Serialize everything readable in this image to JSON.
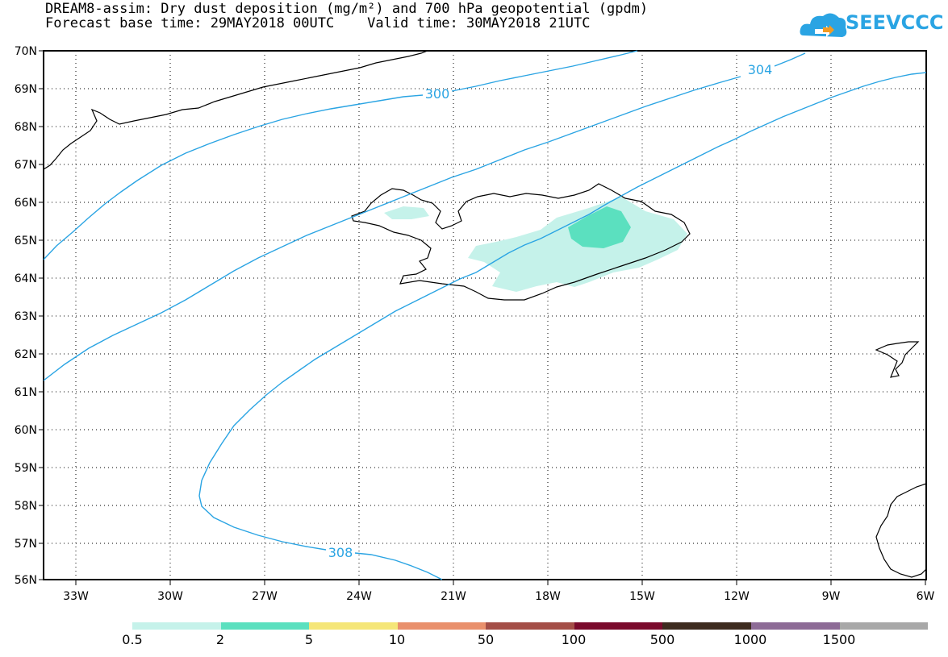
{
  "title_line1": "DREAM8-assim: Dry dust deposition (mg/m²) and 700 hPa geopotential (gpdm)",
  "title_line2": "Forecast base time: 29MAY2018 00UTC    Valid time: 30MAY2018 21UTC",
  "logo_text": "SEEVCCC",
  "lat_labels": [
    "70N",
    "69N",
    "68N",
    "67N",
    "66N",
    "65N",
    "64N",
    "63N",
    "62N",
    "61N",
    "60N",
    "59N",
    "58N",
    "57N",
    "56N"
  ],
  "lon_labels": [
    "33W",
    "30W",
    "27W",
    "24W",
    "21W",
    "18W",
    "15W",
    "12W",
    "9W",
    "6W"
  ],
  "contour_labels": [
    "300",
    "304",
    "308"
  ],
  "colorbar": {
    "colors": [
      "#c5f2ea",
      "#5be0bf",
      "#f5e678",
      "#e9906c",
      "#a44e47",
      "#7a0a2c",
      "#3d2b1f",
      "#8d6b96",
      "#a8a8a8"
    ],
    "labels": [
      "0.5",
      "2",
      "5",
      "10",
      "50",
      "100",
      "500",
      "1000",
      "1500"
    ]
  },
  "colors": {
    "contour": "#2aa4e3",
    "light_dust": "#c5f2ea",
    "medium_dust": "#5be0bf"
  }
}
